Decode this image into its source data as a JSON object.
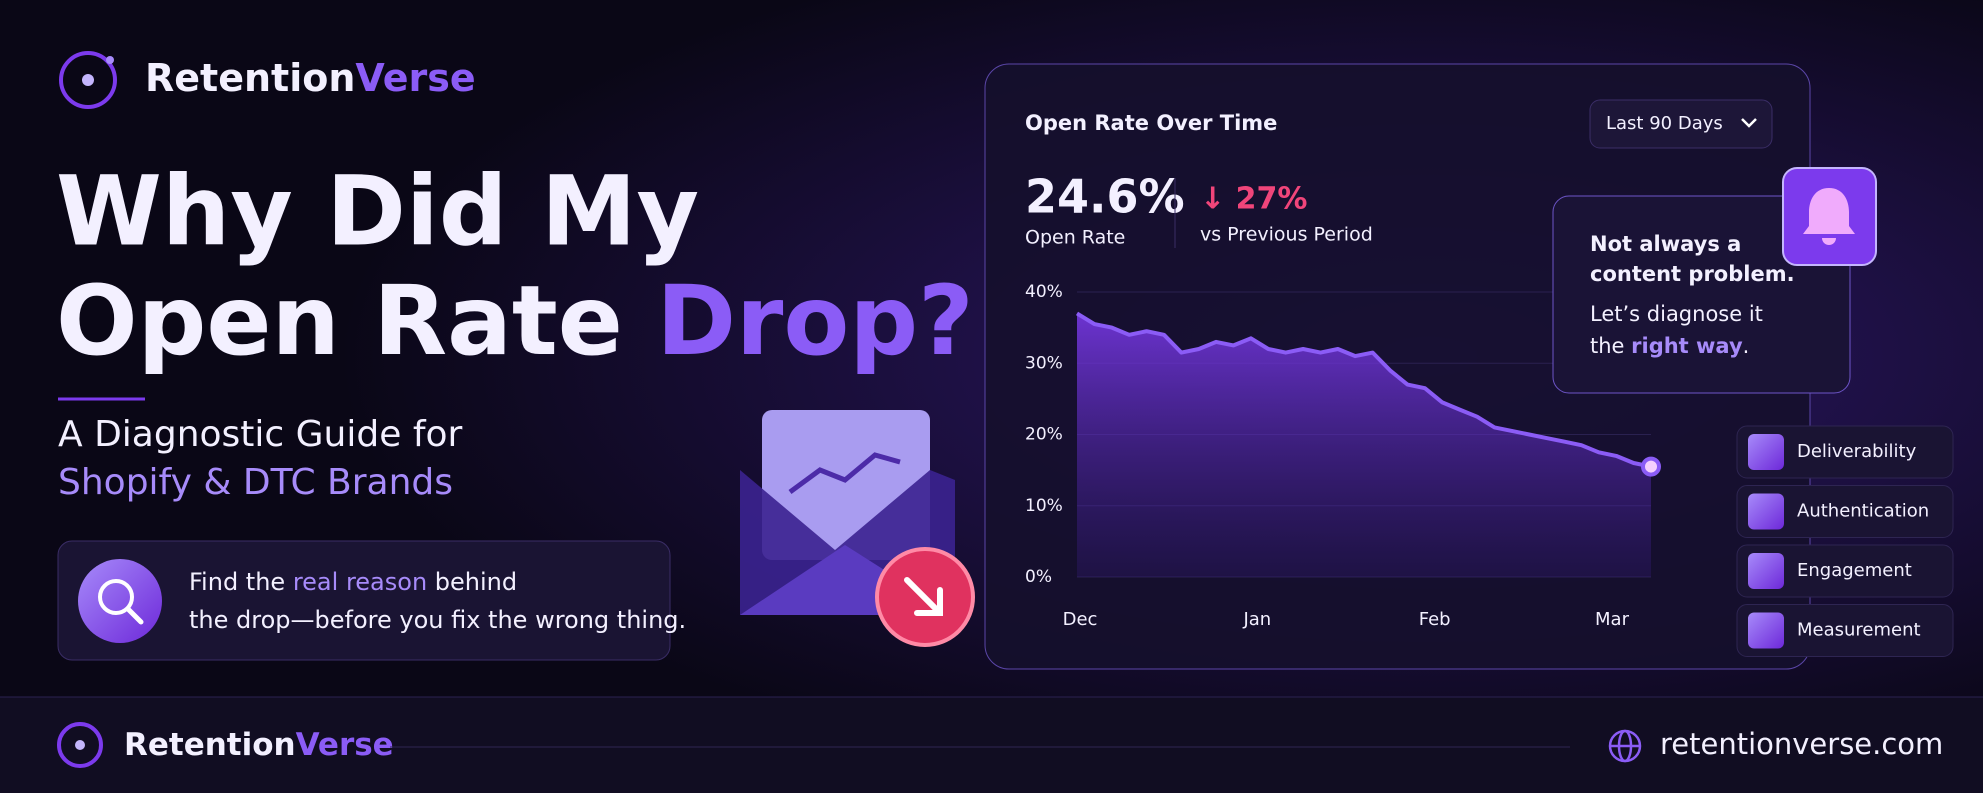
{
  "brand": {
    "name_part1": "Retention",
    "name_part2": "Verse"
  },
  "headline": {
    "line1": "Why Did My",
    "line2_part1": "Open Rate ",
    "line2_highlight": "Drop?"
  },
  "subtitle": {
    "line1": "A Diagnostic Guide for",
    "line2": "Shopify & DTC Brands"
  },
  "info_box": {
    "line1_part1": "Find the ",
    "line1_highlight": "real reason",
    "line1_part2": " behind",
    "line2": "the drop—before you fix the wrong thing."
  },
  "card": {
    "title": "Open Rate Over Time",
    "dropdown": "Last 90 Days",
    "metric_value": "24.6%",
    "metric_label": "Open Rate",
    "change_value": "↓ 27%",
    "change_label": "vs Previous Period"
  },
  "chart": {
    "type": "line",
    "x_labels": [
      "Dec",
      "Jan",
      "Feb",
      "Mar"
    ],
    "series": [
      {
        "color": "#8b5cf6",
        "values": [
          37,
          35.5,
          35,
          34,
          34.5,
          34,
          31.5,
          32,
          33,
          32.5,
          33.5,
          32,
          31.5,
          32,
          31.5,
          32,
          31,
          31.5,
          29,
          27,
          26.5,
          24.5,
          23.5,
          22.5,
          21,
          20.5,
          20,
          19.5,
          19,
          18.5,
          17.5,
          17,
          16,
          15.5
        ]
      }
    ],
    "ylim": [
      0,
      40
    ],
    "yticks": [
      {
        "value": 0,
        "label": "0%"
      },
      {
        "value": 10,
        "label": "10%"
      },
      {
        "value": 20,
        "label": "20%"
      },
      {
        "value": 30,
        "label": "30%"
      },
      {
        "value": 40,
        "label": "40%"
      }
    ],
    "grid": true
  },
  "callout": {
    "line1": "Not always a",
    "line2": "content problem.",
    "line3": "Let’s diagnose it",
    "line4_part1": "the ",
    "line4_highlight": "right way",
    "line4_part2": "."
  },
  "factors": [
    "Deliverability",
    "Authentication",
    "Engagement",
    "Measurement"
  ],
  "footer": {
    "brand_part1": "Retention",
    "brand_part2": "Verse",
    "website": "retentionverse.com"
  }
}
